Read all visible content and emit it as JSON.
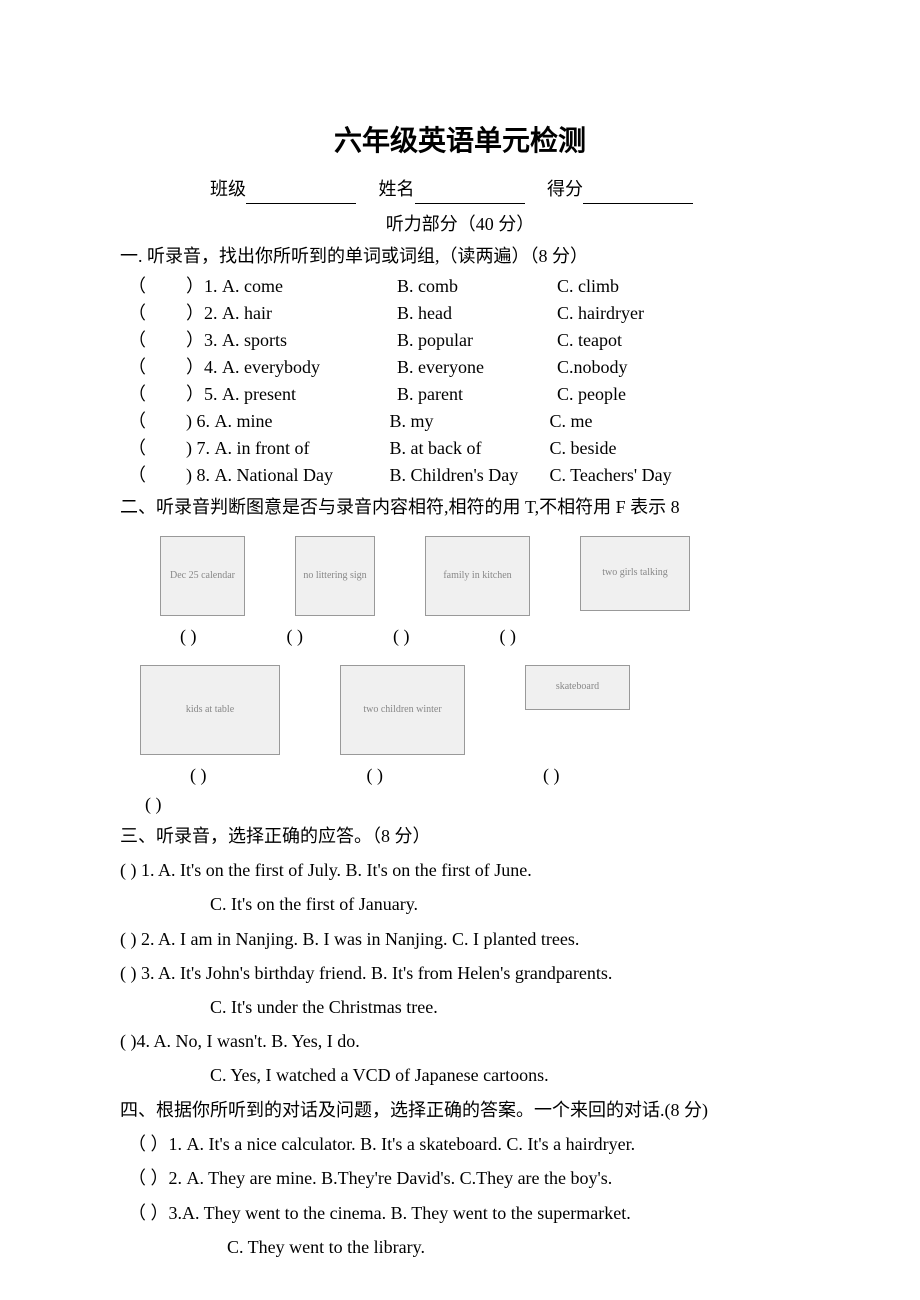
{
  "title": "六年级英语单元检测",
  "header": {
    "class_label": "班级",
    "name_label": "姓名",
    "score_label": "得分"
  },
  "listening_section": "听力部分（40 分）",
  "section1": {
    "instruction": "一. 听录音，找出你所听到的单词或词组,（读两遍）（8 分）",
    "items": [
      {
        "num": "）1.",
        "a": "A. come",
        "b": "B. comb",
        "c": "C. climb"
      },
      {
        "num": "）2.",
        "a": "A. hair",
        "b": "B. head",
        "c": "C. hairdryer"
      },
      {
        "num": "）3.",
        "a": "A. sports",
        "b": "B. popular",
        "c": "C. teapot"
      },
      {
        "num": "）4.",
        "a": "A. everybody",
        "b": "B. everyone",
        "c": "C.nobody"
      },
      {
        "num": "）5.",
        "a": "A. present",
        "b": "B. parent",
        "c": "C. people"
      },
      {
        "num": ") 6.",
        "a": "A. mine",
        "b": "B. my",
        "c": "C. me"
      },
      {
        "num": ") 7.",
        "a": "A. in front of",
        "b": "B. at back of",
        "c": "C. beside"
      },
      {
        "num": ") 8.",
        "a": "A. National Day",
        "b": "B. Children's Day",
        "c": "C. Teachers' Day"
      }
    ]
  },
  "section2": {
    "instruction": "二、听录音判断图意是否与录音内容相符,相符的用 T,不相符用 F 表示 8",
    "images_row1": [
      {
        "w": 85,
        "h": 80,
        "label": "Dec 25 calendar"
      },
      {
        "w": 80,
        "h": 80,
        "label": "no littering sign"
      },
      {
        "w": 105,
        "h": 80,
        "label": "family in kitchen"
      },
      {
        "w": 110,
        "h": 75,
        "label": "two girls talking"
      }
    ],
    "images_row2": [
      {
        "w": 140,
        "h": 90,
        "label": "kids at table"
      },
      {
        "w": 125,
        "h": 90,
        "label": "two children winter"
      },
      {
        "w": 105,
        "h": 45,
        "label": "skateboard"
      }
    ],
    "paren_text": "(        )"
  },
  "section3": {
    "instruction": "三、听录音，选择正确的应答。（8 分）",
    "items": [
      {
        "main": "(      ) 1. A. It's on the first of July.        B. It's on the first of June.",
        "sub": "C. It's on the first of January."
      },
      {
        "main": "(      ) 2. A. I am in Nanjing. B. I was in Nanjing. C. I planted trees.",
        "sub": ""
      },
      {
        "main": "(      ) 3. A. It's John's birthday friend.        B. It's from Helen's grandparents.",
        "sub": "C. It's under the Christmas tree."
      },
      {
        "main": "(      )4. A. No, I wasn't.    B. Yes, I do.",
        "sub": "C. Yes, I watched a VCD of Japanese cartoons."
      }
    ]
  },
  "section4": {
    "instruction": "四、根据你所听到的对话及问题，选择正确的答案。一个来回的对话.(8 分)",
    "items": [
      {
        "main": "（      ）1. A. It's a nice calculator.    B. It's a skateboard. C. It's a hairdryer.",
        "sub": ""
      },
      {
        "main": "（      ）2. A. They are mine. B.They're David's. C.They are the boy's.",
        "sub": ""
      },
      {
        "main": "（      ）3.A. They went to the cinema.    B. They went to the supermarket.",
        "sub": "C. They went to the library."
      }
    ]
  }
}
